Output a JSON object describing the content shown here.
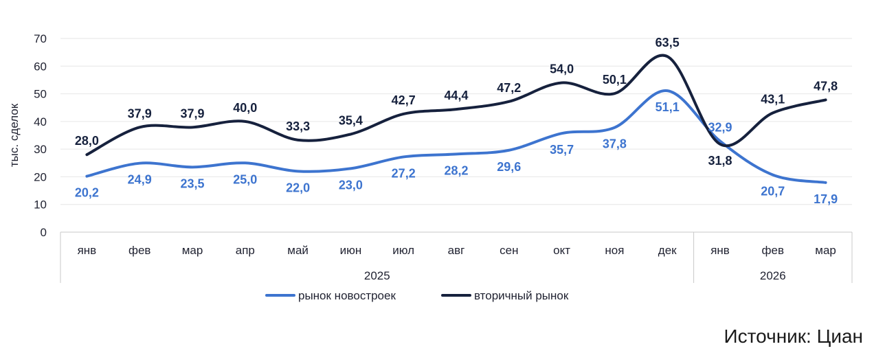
{
  "chart_data": {
    "type": "line",
    "ylabel": "тыс. сделок",
    "ylim": [
      0,
      70
    ],
    "yticks": [
      "0",
      "10",
      "20",
      "30",
      "40",
      "50",
      "60",
      "70"
    ],
    "categories": [
      "янв",
      "фев",
      "мар",
      "апр",
      "май",
      "июн",
      "июл",
      "авг",
      "сен",
      "окт",
      "ноя",
      "дек",
      "янв",
      "фев",
      "мар"
    ],
    "year_groups": [
      {
        "label": "2025",
        "count": 12
      },
      {
        "label": "2026",
        "count": 3
      }
    ],
    "series": [
      {
        "name": "рынок новостроек",
        "color": "#3d74cf",
        "values": [
          20.2,
          24.9,
          23.5,
          25.0,
          22.0,
          23.0,
          27.2,
          28.2,
          29.6,
          35.7,
          37.8,
          51.1,
          32.9,
          20.7,
          17.9
        ],
        "labels": [
          "20,2",
          "24,9",
          "23,5",
          "25,0",
          "22,0",
          "23,0",
          "27,2",
          "28,2",
          "29,6",
          "35,7",
          "37,8",
          "51,1",
          "32,9",
          "20,7",
          "17,9"
        ]
      },
      {
        "name": "вторичный рынок",
        "color": "#16213d",
        "values": [
          28.0,
          37.9,
          37.9,
          40.0,
          33.3,
          35.4,
          42.7,
          44.4,
          47.2,
          54.0,
          50.1,
          63.5,
          31.8,
          43.1,
          47.8
        ],
        "labels": [
          "28,0",
          "37,9",
          "37,9",
          "40,0",
          "33,3",
          "35,4",
          "42,7",
          "44,4",
          "47,2",
          "54,0",
          "50,1",
          "63,5",
          "31,8",
          "43,1",
          "47,8"
        ]
      }
    ],
    "grid": true,
    "legend": "bottom-center"
  },
  "source": "Источник: Циан"
}
